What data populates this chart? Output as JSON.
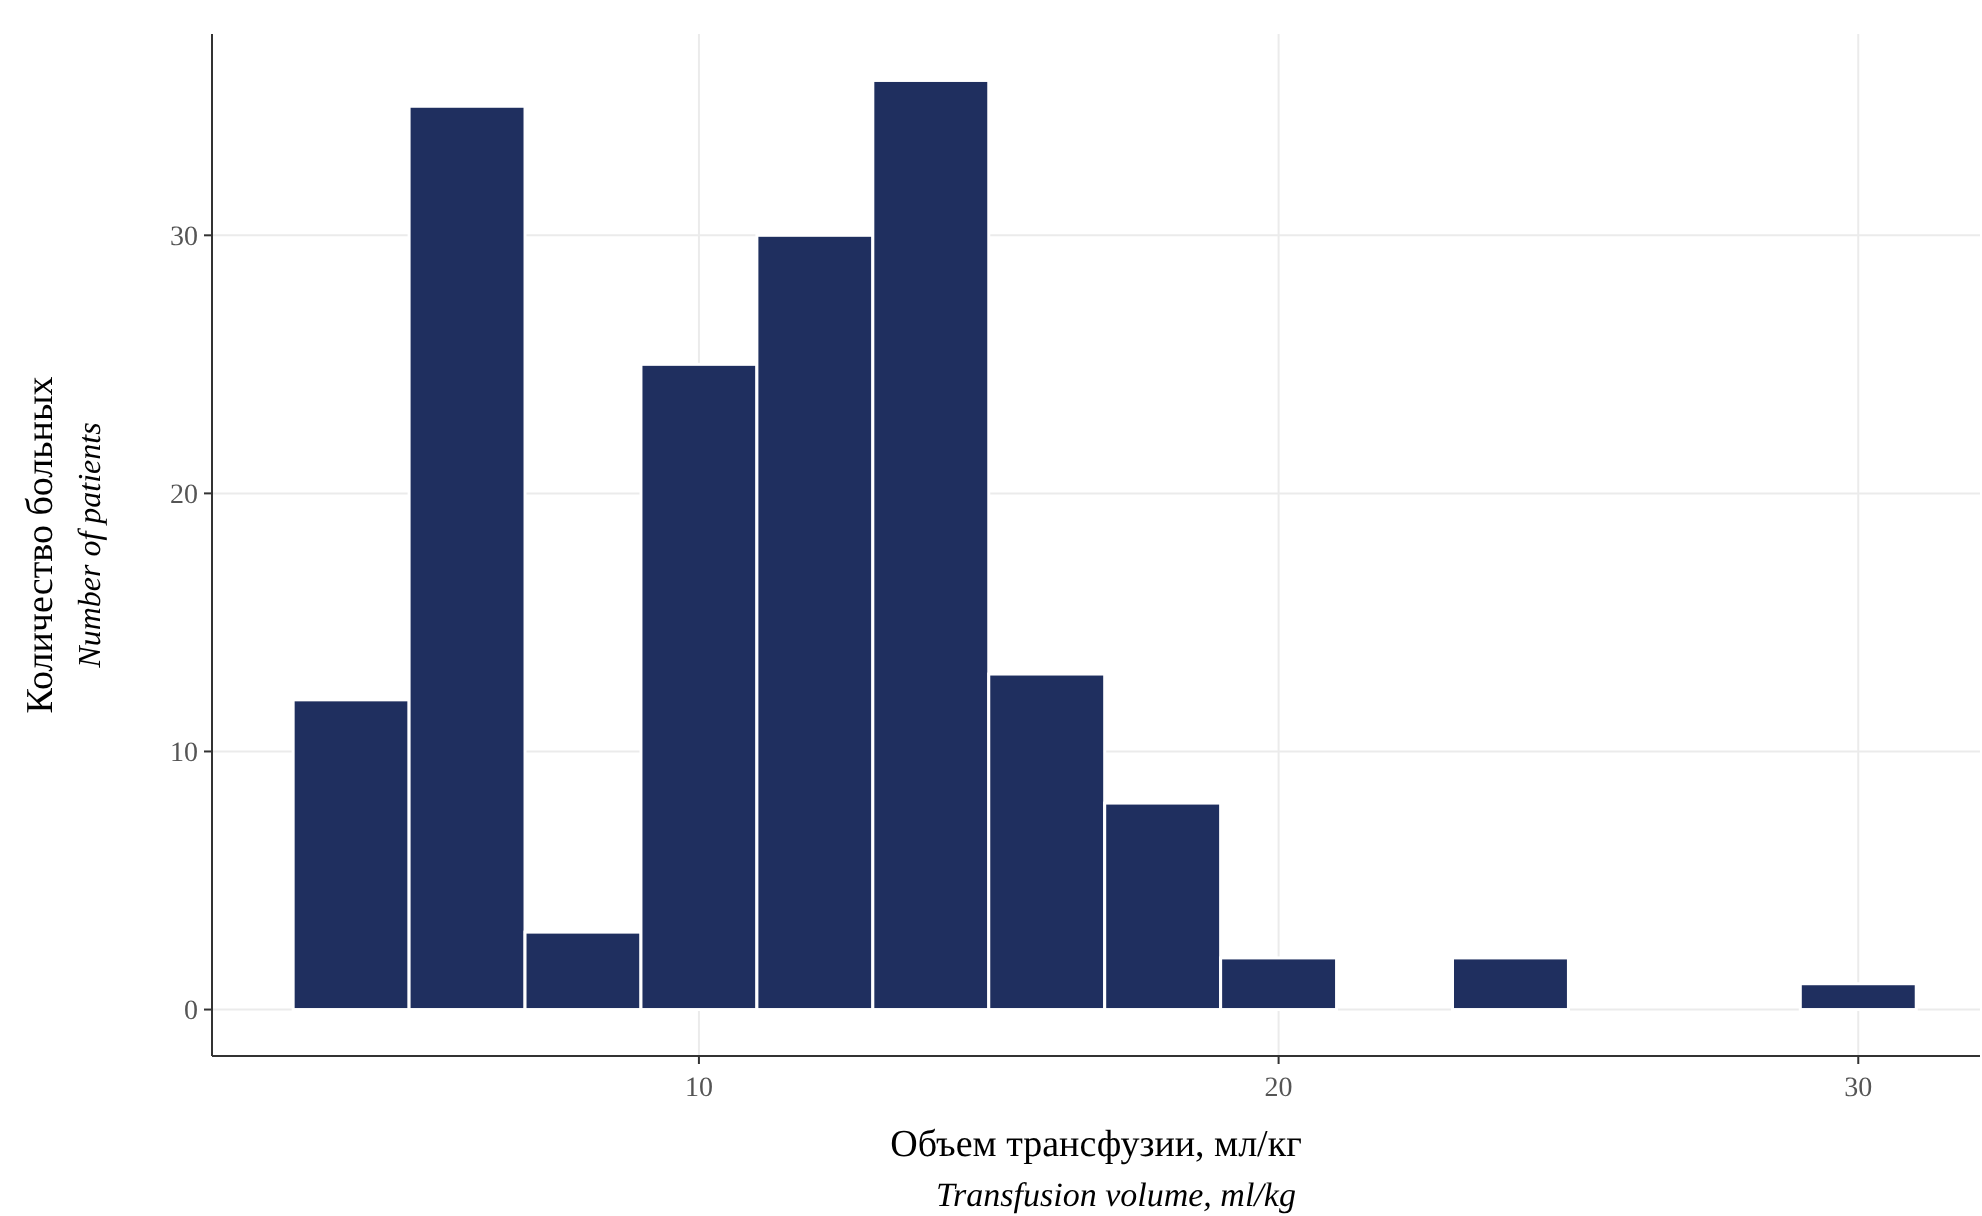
{
  "chart_data": {
    "type": "histogram",
    "xlabel": "Объем трансфузии, мл/кг\nTransfusion volume, ml/kg",
    "ylabel": "Количество больных\nNumber of patients",
    "bins": [
      3,
      5,
      7,
      9,
      11,
      13,
      15,
      17,
      19,
      21,
      23,
      25,
      27,
      29,
      31
    ],
    "values": [
      12,
      35,
      3,
      25,
      30,
      36,
      13,
      8,
      2,
      0,
      2,
      0,
      0,
      1
    ],
    "color": "#1f2f5f",
    "xlim": [
      1.6,
      32.1
    ],
    "ylim": [
      -1.8,
      37.8
    ],
    "xticks": [
      10,
      20,
      30
    ],
    "yticks": [
      0,
      10,
      20,
      30
    ],
    "grid": true
  }
}
